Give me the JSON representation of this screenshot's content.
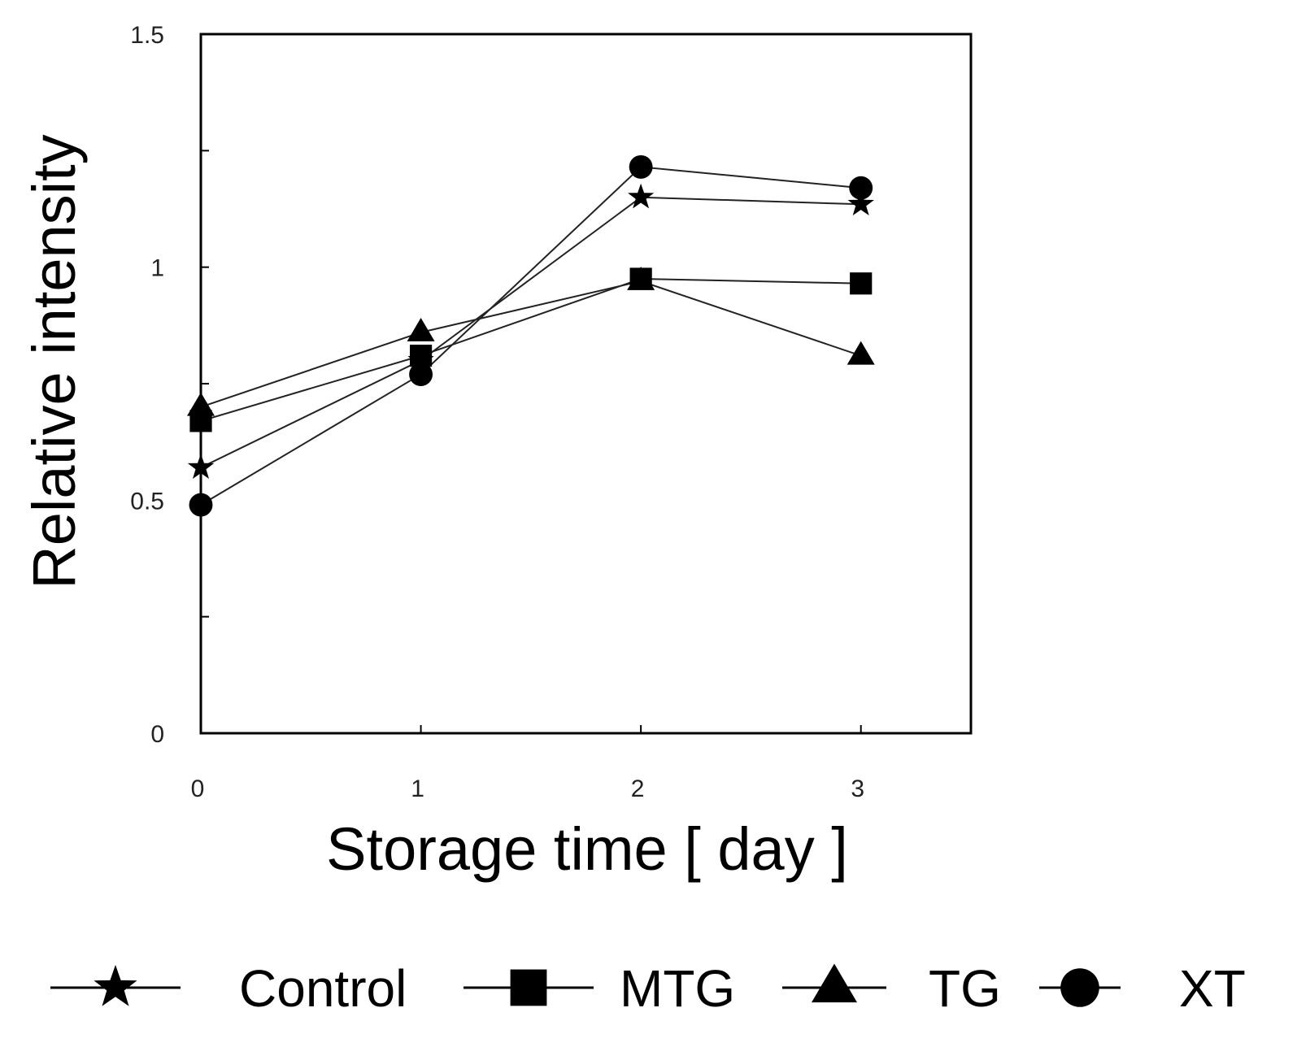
{
  "chart_data": {
    "type": "line",
    "title": "",
    "xlabel": "Storage time [ day ]",
    "ylabel": "Relative intensity",
    "x": [
      0,
      1,
      2,
      3
    ],
    "xlim": [
      0,
      3.5
    ],
    "ylim": [
      0,
      1.5
    ],
    "x_ticks": [
      0,
      1,
      2,
      3
    ],
    "x_tick_labels": [
      "0",
      "1",
      "2",
      "3"
    ],
    "y_ticks": [
      0,
      0.25,
      0.5,
      0.75,
      1,
      1.25,
      1.5
    ],
    "y_tick_labels": [
      "0",
      "",
      "0.5",
      "",
      "1",
      "",
      "1.5"
    ],
    "grid": false,
    "legend_position": "bottom",
    "series": [
      {
        "name": "Control",
        "marker": "star",
        "values": [
          0.57,
          0.8,
          1.15,
          1.135
        ]
      },
      {
        "name": "MTG",
        "marker": "square",
        "values": [
          0.67,
          0.81,
          0.975,
          0.965
        ]
      },
      {
        "name": "TG",
        "marker": "triangle",
        "values": [
          0.7,
          0.86,
          0.97,
          0.81
        ]
      },
      {
        "name": "XT",
        "marker": "circle",
        "values": [
          0.49,
          0.77,
          1.215,
          1.17
        ]
      }
    ]
  }
}
